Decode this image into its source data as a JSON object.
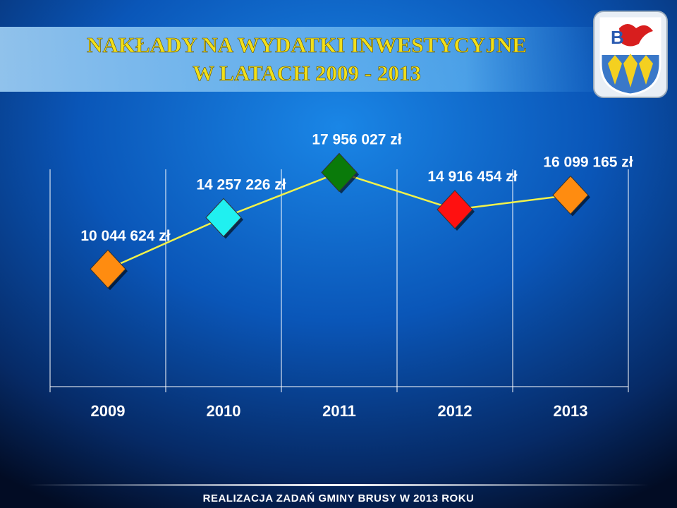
{
  "chart_data": {
    "type": "line",
    "title": "NAKŁADY NA WYDATKI INWESTYCYJNE",
    "subtitle": "W LATACH 2009 - 2013",
    "footer": "REALIZACJA ZADAŃ GMINY BRUSY W 2013 ROKU",
    "categories": [
      "2009",
      "2010",
      "2011",
      "2012",
      "2013"
    ],
    "series": [
      {
        "color": "#f2f24a",
        "values": [
          10044624,
          14257226,
          17956027,
          14916454,
          16099165
        ],
        "value_labels": [
          "10 044 624 zł",
          "14 257 226 zł",
          "17 956 027 zł",
          "14 916 454 zł",
          "16 099 165 zł"
        ],
        "point_colors": [
          "#ff8c10",
          "#20f0f0",
          "#0a7a0a",
          "#ff1010",
          "#ff8c10"
        ]
      }
    ],
    "ylim": [
      0,
      20000000
    ]
  }
}
